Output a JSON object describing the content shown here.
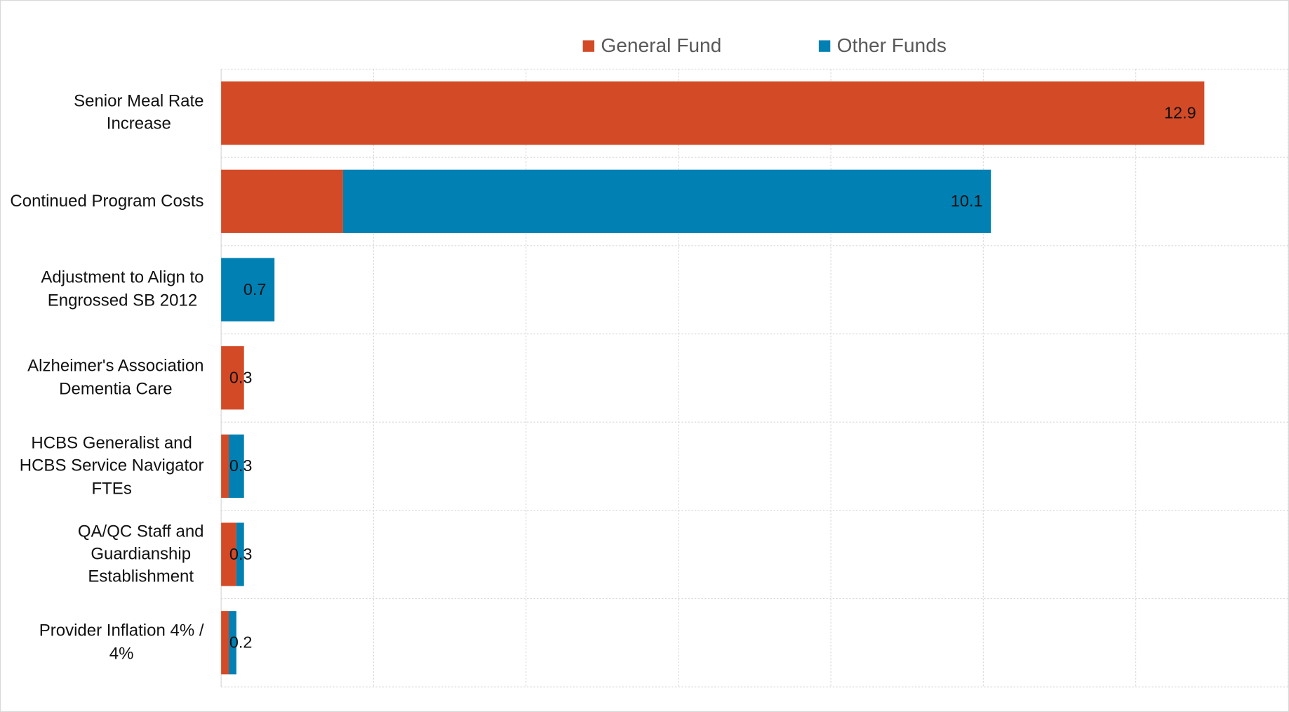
{
  "chart_data": {
    "type": "stacked-bar-horizontal",
    "categories": [
      "Senior Meal Rate\nIncrease",
      "Continued Program Costs",
      "Adjustment to Align to\nEngrossed SB 2012",
      "Alzheimer's Association\nDementia Care",
      "HCBS Generalist and\nHCBS Service Navigator\nFTEs",
      "QA/QC Staff and\nGuardianship\nEstablishment",
      "Provider Inflation 4% /\n4%"
    ],
    "series": [
      {
        "name": "General Fund",
        "color": "#d34a27",
        "values": [
          12.9,
          1.6,
          0,
          0.3,
          0.1,
          0.2,
          0.1
        ]
      },
      {
        "name": "Other Funds",
        "color": "#0080b3",
        "values": [
          0,
          8.5,
          0.7,
          0,
          0.2,
          0.1,
          0.1
        ]
      }
    ],
    "totals": [
      12.9,
      10.1,
      0.7,
      0.3,
      0.3,
      0.3,
      0.2
    ],
    "xlim": [
      0,
      14
    ],
    "xticks": [
      0,
      2,
      4,
      6,
      8,
      10,
      12,
      14
    ],
    "grid": true,
    "legend": "top"
  }
}
